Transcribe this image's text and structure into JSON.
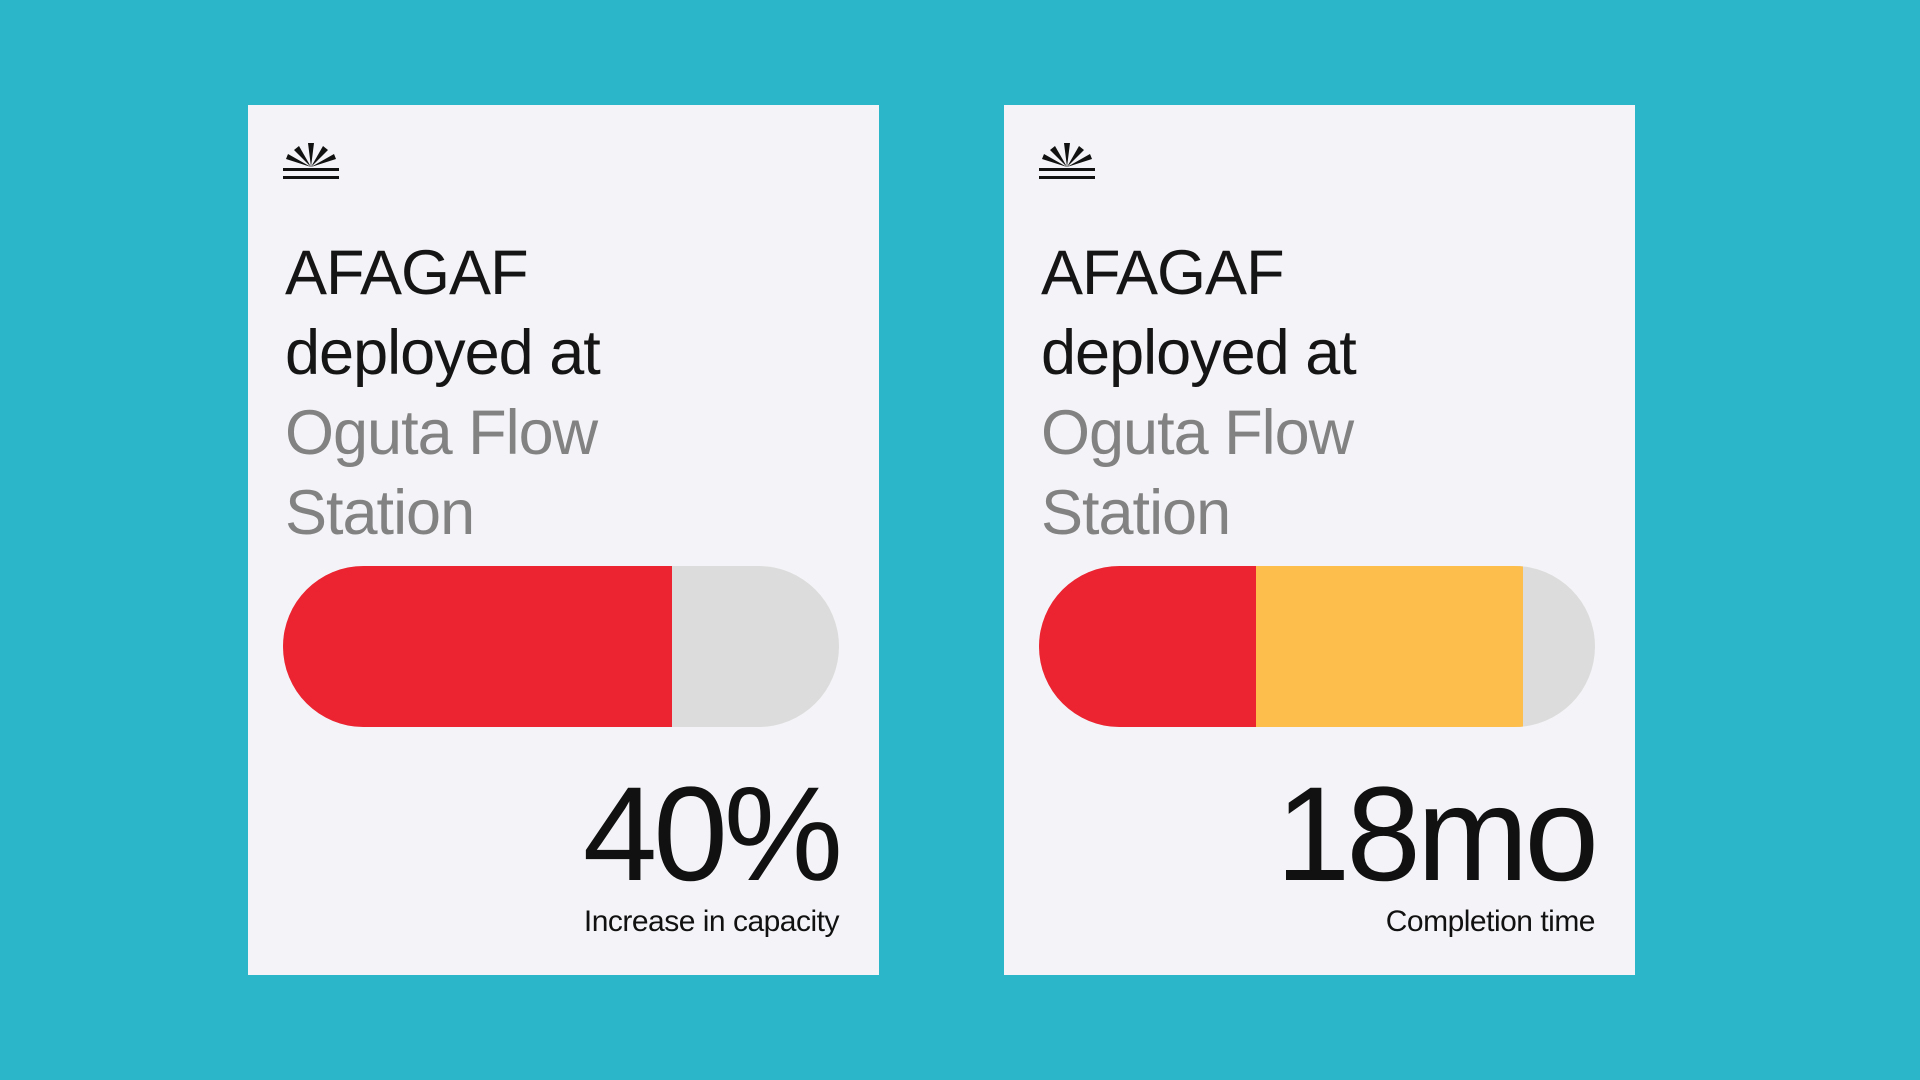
{
  "cards": [
    {
      "headline_dark": [
        "AFAGAF",
        "deployed at"
      ],
      "headline_muted": [
        "Oguta Flow",
        "Station"
      ],
      "metric": "40%",
      "caption": "Increase in capacity",
      "segments": [
        {
          "fraction": 0.7,
          "color": "#ec2330"
        }
      ]
    },
    {
      "headline_dark": [
        "AFAGAF",
        "deployed at"
      ],
      "headline_muted": [
        "Oguta Flow",
        "Station"
      ],
      "metric": "18mo",
      "caption": "Completion time",
      "segments": [
        {
          "fraction": 0.39,
          "color": "#ec2330"
        },
        {
          "fraction": 0.48,
          "color": "#fdbe4c"
        }
      ]
    }
  ],
  "colors": {
    "background": "#2bb6c9",
    "card": "#f4f4f8",
    "track": "#dcdcdc"
  }
}
